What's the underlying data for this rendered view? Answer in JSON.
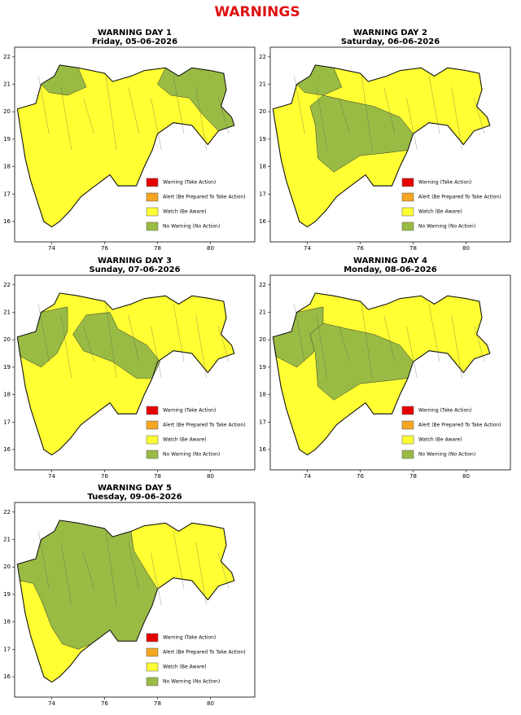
{
  "title": "WARNINGS",
  "axes": {
    "xticks": [
      74,
      76,
      78,
      80
    ],
    "yticks": [
      16,
      17,
      18,
      19,
      20,
      21,
      22
    ]
  },
  "legend": [
    {
      "label": "Warning (Take Action)",
      "color": "#e60000"
    },
    {
      "label": "Alert (Be Prepared To Take Action)",
      "color": "#f5a623"
    },
    {
      "label": "Watch (Be Aware)",
      "color": "#ffff33"
    },
    {
      "label": "No Warning (No Action)",
      "color": "#99bb44"
    }
  ],
  "panels": [
    {
      "heading": "WARNING DAY 1",
      "date": "Friday, 05-06-2026"
    },
    {
      "heading": "WARNING DAY 2",
      "date": "Saturday, 06-06-2026"
    },
    {
      "heading": "WARNING DAY 3",
      "date": "Sunday, 07-06-2026"
    },
    {
      "heading": "WARNING DAY 4",
      "date": "Monday, 08-06-2026"
    },
    {
      "heading": "WARNING DAY 5",
      "date": "Tuesday, 09-06-2026"
    }
  ]
}
